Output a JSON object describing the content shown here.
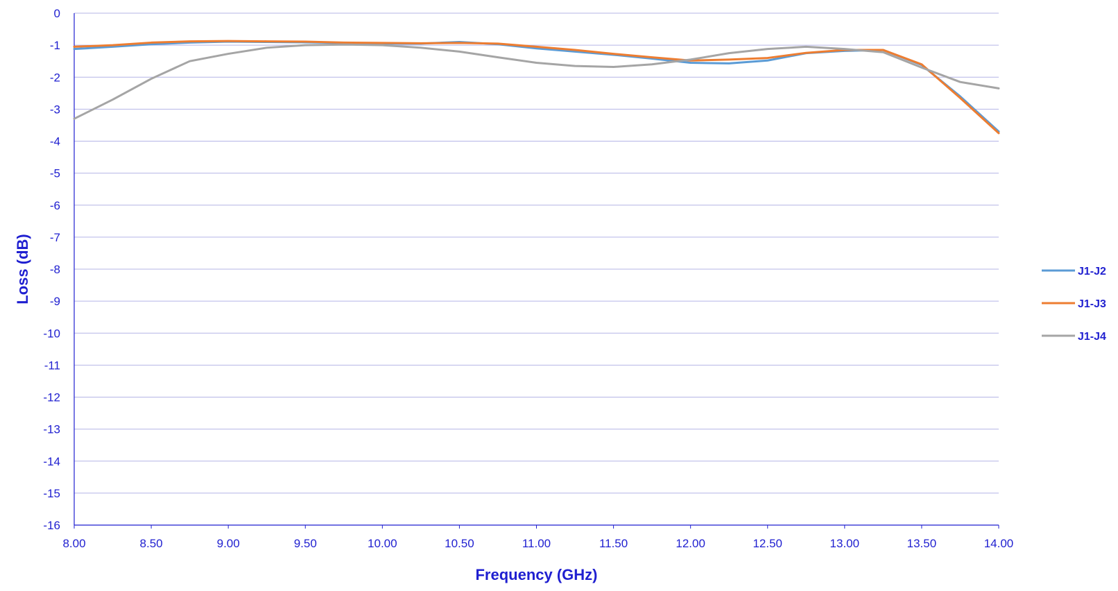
{
  "chart_data": {
    "type": "line",
    "title": "",
    "xlabel": "Frequency (GHz)",
    "ylabel": "Loss (dB)",
    "xlim": [
      8.0,
      14.0
    ],
    "ylim": [
      -16,
      0
    ],
    "x_ticks": [
      "8.00",
      "8.50",
      "9.00",
      "9.50",
      "10.00",
      "10.50",
      "11.00",
      "11.50",
      "12.00",
      "12.50",
      "13.00",
      "13.50",
      "14.00"
    ],
    "y_ticks": [
      "0",
      "-1",
      "-2",
      "-3",
      "-4",
      "-5",
      "-6",
      "-7",
      "-8",
      "-9",
      "-10",
      "-11",
      "-12",
      "-13",
      "-14",
      "-15",
      "-16"
    ],
    "grid": "horizontal",
    "legend_position": "right",
    "axis_color": "#1f1fd0",
    "grid_color": "#b4b4e6",
    "x": [
      8.0,
      8.25,
      8.5,
      8.75,
      9.0,
      9.25,
      9.5,
      9.75,
      10.0,
      10.25,
      10.5,
      10.75,
      11.0,
      11.25,
      11.5,
      11.75,
      12.0,
      12.25,
      12.5,
      12.75,
      13.0,
      13.25,
      13.5,
      13.75,
      14.0
    ],
    "series": [
      {
        "name": "J1-J2",
        "color": "#5b9bd5",
        "values": [
          -1.12,
          -1.05,
          -0.97,
          -0.92,
          -0.89,
          -0.9,
          -0.91,
          -0.93,
          -0.95,
          -0.95,
          -0.9,
          -0.97,
          -1.1,
          -1.2,
          -1.3,
          -1.42,
          -1.55,
          -1.57,
          -1.48,
          -1.25,
          -1.18,
          -1.15,
          -1.62,
          -2.6,
          -3.7
        ]
      },
      {
        "name": "J1-J3",
        "color": "#ed7d31",
        "values": [
          -1.05,
          -1.0,
          -0.92,
          -0.88,
          -0.87,
          -0.88,
          -0.89,
          -0.92,
          -0.93,
          -0.94,
          -0.93,
          -0.95,
          -1.05,
          -1.15,
          -1.27,
          -1.38,
          -1.48,
          -1.45,
          -1.4,
          -1.24,
          -1.15,
          -1.15,
          -1.6,
          -2.65,
          -3.75
        ]
      },
      {
        "name": "J1-J4",
        "color": "#a5a5a5",
        "values": [
          -3.3,
          -2.7,
          -2.05,
          -1.5,
          -1.27,
          -1.08,
          -1.0,
          -0.98,
          -1.0,
          -1.08,
          -1.2,
          -1.38,
          -1.55,
          -1.65,
          -1.68,
          -1.6,
          -1.45,
          -1.25,
          -1.12,
          -1.05,
          -1.12,
          -1.22,
          -1.7,
          -2.15,
          -2.35
        ]
      }
    ]
  }
}
